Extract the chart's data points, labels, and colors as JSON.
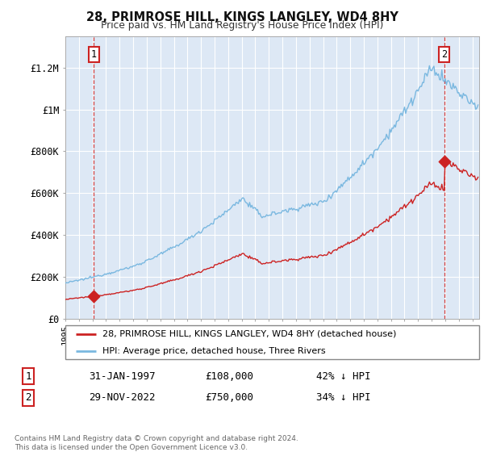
{
  "title": "28, PRIMROSE HILL, KINGS LANGLEY, WD4 8HY",
  "subtitle": "Price paid vs. HM Land Registry's House Price Index (HPI)",
  "hpi_label": "HPI: Average price, detached house, Three Rivers",
  "sale_label": "28, PRIMROSE HILL, KINGS LANGLEY, WD4 8HY (detached house)",
  "footnote": "Contains HM Land Registry data © Crown copyright and database right 2024.\nThis data is licensed under the Open Government Licence v3.0.",
  "sale1_date": "31-JAN-1997",
  "sale1_price": 108000,
  "sale1_label": "42% ↓ HPI",
  "sale2_date": "29-NOV-2022",
  "sale2_price": 750000,
  "sale2_label": "34% ↓ HPI",
  "hpi_color": "#7ab8e0",
  "sale_color": "#cc2222",
  "marker_box_color": "#cc2222",
  "bg_color": "#dde8f5",
  "grid_color": "#ffffff",
  "ylim": [
    0,
    1350000
  ],
  "yticks": [
    0,
    200000,
    400000,
    600000,
    800000,
    1000000,
    1200000
  ],
  "ytick_labels": [
    "£0",
    "£200K",
    "£400K",
    "£600K",
    "£800K",
    "£1M",
    "£1.2M"
  ],
  "xstart": 1995.0,
  "xend": 2025.5
}
